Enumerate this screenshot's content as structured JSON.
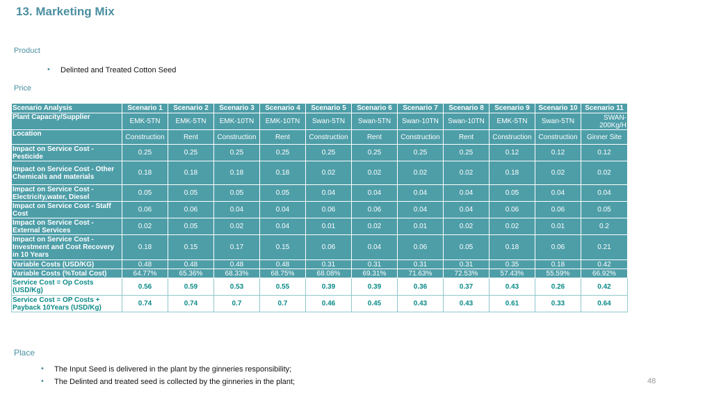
{
  "title": "13. Marketing Mix",
  "product": {
    "heading": "Product",
    "bullet": "Delinted and Treated Cotton Seed"
  },
  "price": {
    "heading": "Price"
  },
  "table": {
    "header": [
      "Scenario Analysis",
      "Scenario 1",
      "Scenario 2",
      "Scenario 3",
      "Scenario 4",
      "Scenario 5",
      "Scenario 6",
      "Scenario 7",
      "Scenario 8",
      "Scenario 9",
      "Scenario 10",
      "Scenario 11"
    ],
    "rows": [
      [
        "Plant Capacity/Supplier",
        "EMK-5TN",
        "EMK-5TN",
        "EMK-10TN",
        "EMK-10TN",
        "Swan-5TN",
        "Swan-5TN",
        "Swan-10TN",
        "Swan-10TN",
        "EMK-5TN",
        "Swan-5TN",
        "SWAN-200Kg/H"
      ],
      [
        "Location",
        "Construction",
        "Rent",
        "Construction",
        "Rent",
        "Construction",
        "Rent",
        "Construction",
        "Rent",
        "Construction",
        "Construction",
        "Ginner Site"
      ],
      [
        "Impact on Service Cost - Pesticide",
        "0.25",
        "0.25",
        "0.25",
        "0.25",
        "0.25",
        "0.25",
        "0.25",
        "0.25",
        "0.12",
        "0.12",
        "0.12"
      ],
      [
        "Impact on Service Cost - Other Chemicals and materials",
        "0.18",
        "0.18",
        "0.18",
        "0.18",
        "0.02",
        "0.02",
        "0.02",
        "0.02",
        "0.18",
        "0.02",
        "0.02"
      ],
      [
        "Impact on Service Cost - Electricity,water, Diesel",
        "0.05",
        "0.05",
        "0.05",
        "0.05",
        "0.04",
        "0.04",
        "0.04",
        "0.04",
        "0.05",
        "0.04",
        "0.04"
      ],
      [
        "Impact on Service Cost - Staff Cost",
        "0.06",
        "0.06",
        "0.04",
        "0.04",
        "0.06",
        "0.06",
        "0.04",
        "0.04",
        "0.06",
        "0.06",
        "0.05"
      ],
      [
        "Impact on Service Cost - External Services",
        "0.02",
        "0.05",
        "0.02",
        "0.04",
        "0.01",
        "0.02",
        "0.01",
        "0.02",
        "0.02",
        "0.01",
        "0.2"
      ],
      [
        "Impact on Service Cost - Investment and Cost Recovery in 10 Years",
        "0.18",
        "0.15",
        "0.17",
        "0.15",
        "0.06",
        "0.04",
        "0.06",
        "0.05",
        "0.18",
        "0.06",
        "0.21"
      ],
      [
        "Variable Costs (USD/KG)",
        "0.48",
        "0.48",
        "0.48",
        "0.48",
        "0.31",
        "0.31",
        "0.31",
        "0.31",
        "0.35",
        "0.18",
        "0.42"
      ],
      [
        "Variable Costs (%Total Cost)",
        "64.77%",
        "65.36%",
        "68.33%",
        "68.75%",
        "68.08%",
        "69.31%",
        "71.63%",
        "72.53%",
        "57.43%",
        "55.59%",
        "66.92%"
      ],
      [
        "Service Cost = Op Costs (USD/Kg)",
        "0.56",
        "0.59",
        "0.53",
        "0.55",
        "0.39",
        "0.39",
        "0.36",
        "0.37",
        "0.43",
        "0.26",
        "0.42"
      ],
      [
        "Service Cost = OP Costs + Payback 10Years (USD/Kg)",
        "0.74",
        "0.74",
        "0.7",
        "0.7",
        "0.46",
        "0.45",
        "0.43",
        "0.43",
        "0.61",
        "0.33",
        "0.64"
      ]
    ]
  },
  "place": {
    "heading": "Place",
    "bullets": [
      "The Input Seed is delivered in the plant by the ginneries responsibility;",
      "The Delinted and treated seed is collected by the ginneries in the plant;"
    ]
  },
  "page_number": "48",
  "colors": {
    "accent": "#4a8fa0",
    "table_fill": "#4e9ea8",
    "highlight_text": "#0a8a88"
  },
  "bullet_glyph": "•"
}
